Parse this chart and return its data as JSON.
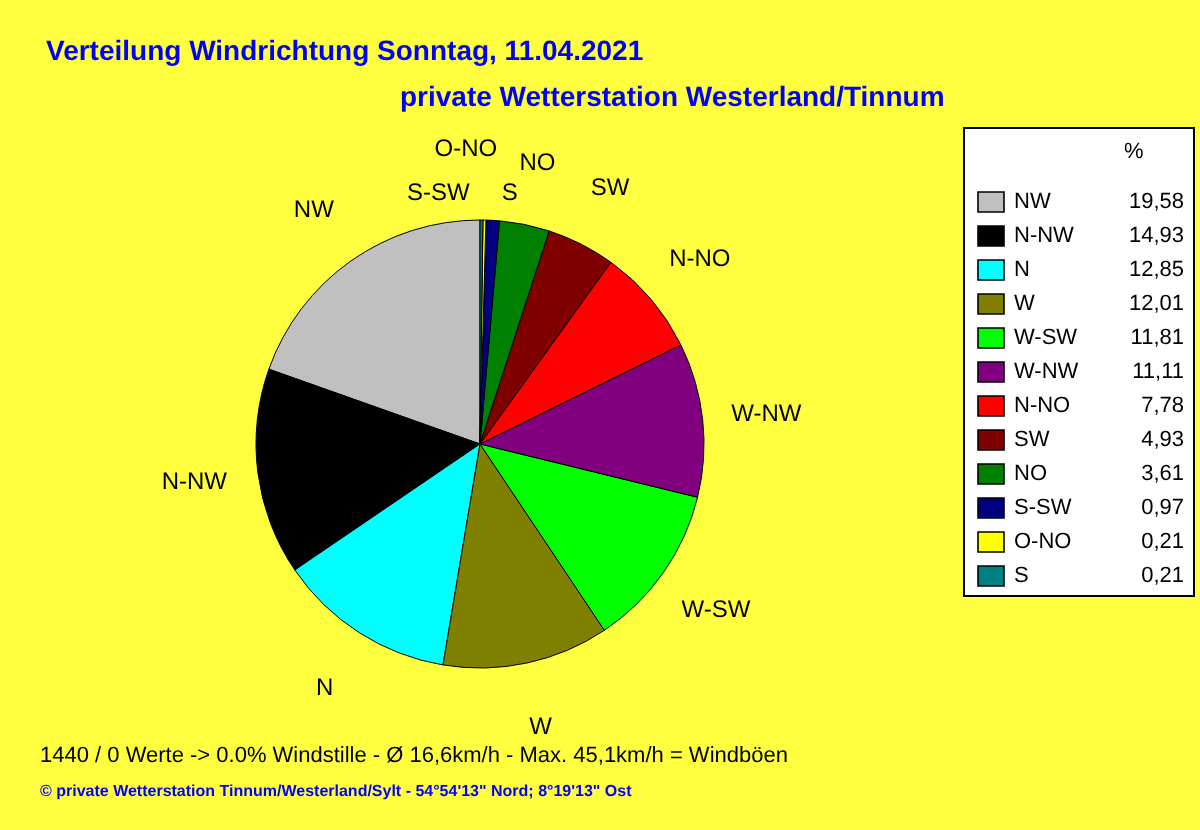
{
  "chart_data": {
    "type": "pie",
    "title": "Verteilung Windrichtung   Sonntag, 11.04.2021",
    "subtitle": "private Wetterstation Westerland/Tinnum",
    "legend_title": "%",
    "categories": [
      "NW",
      "N-NW",
      "N",
      "W",
      "W-SW",
      "W-NW",
      "N-NO",
      "SW",
      "NO",
      "S-SW",
      "O-NO",
      "S"
    ],
    "values": [
      19.58,
      14.93,
      12.85,
      12.01,
      11.81,
      11.11,
      7.78,
      4.93,
      3.61,
      0.97,
      0.21,
      0.21
    ],
    "value_labels": [
      "19,58",
      "14,93",
      "12,85",
      "12,01",
      "11,81",
      "11,11",
      "7,78",
      "4,93",
      "3,61",
      "0,97",
      "0,21",
      "0,21"
    ],
    "colors": [
      "#c0c0c0",
      "#000000",
      "#00ffff",
      "#808000",
      "#00ff00",
      "#800080",
      "#ff0000",
      "#800000",
      "#008000",
      "#000080",
      "#ffff00",
      "#008080"
    ],
    "legend": "right",
    "annotations": [
      "1440 / 0 Werte  -> 0.0% Windstille   -   Ø 16,6km/h  -  Max. 45,1km/h = Windböen",
      "© private Wetterstation Tinnum/Westerland/Sylt  -  54°54'13\" Nord; 8°19'13\" Ost"
    ]
  }
}
